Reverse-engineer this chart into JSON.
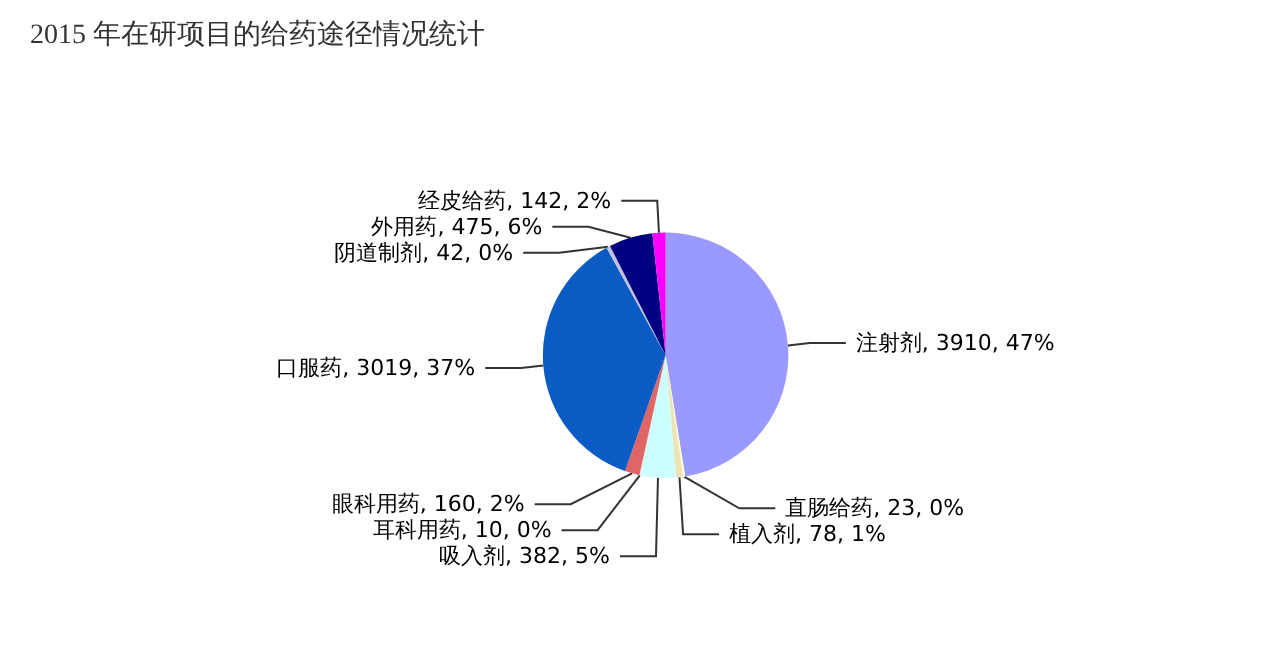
{
  "chart_data": {
    "type": "pie",
    "title": "2015 年在研项目的给药途径情况统计",
    "categories": [
      "注射剂",
      "直肠给药",
      "植入剂",
      "吸入剂",
      "耳科用药",
      "眼科用药",
      "口服药",
      "阴道制剂",
      "外用药",
      "经皮给药"
    ],
    "values": [
      3910,
      23,
      78,
      382,
      10,
      160,
      3019,
      42,
      475,
      142
    ],
    "value_labels": [
      "3910, 47%",
      "23, 0%",
      "78, 1%",
      "382, 5%",
      "10, 0%",
      "160, 2%",
      "3019, 37%",
      "42, 0%",
      "475, 6%",
      "142, 2%"
    ],
    "colors": [
      "#9999ff",
      "#ffffcc",
      "#ede3b8",
      "#ccffff",
      "#e0e0f0",
      "#e06666",
      "#0a5bc4",
      "#c0c0e0",
      "#000080",
      "#ff00ff"
    ]
  }
}
